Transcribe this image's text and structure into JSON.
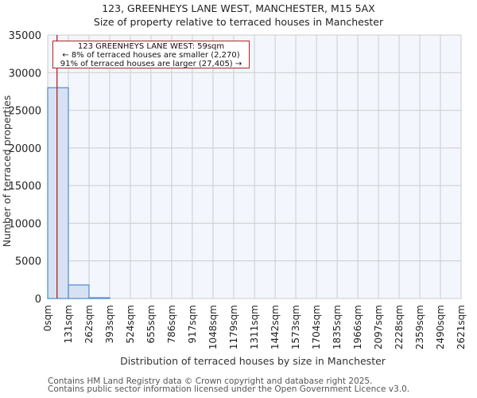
{
  "header": {
    "title_line1": "123, GREENHEYS LANE WEST, MANCHESTER, M15 5AX",
    "title_line2": "Size of property relative to terraced houses in Manchester"
  },
  "annotation": {
    "line1": "123 GREENHEYS LANE WEST: 59sqm",
    "line2": "← 8% of terraced houses are smaller (2,270)",
    "line3": "91% of terraced houses are larger (27,405) →",
    "marker_value_sqm": 59,
    "marker_color": "#b22222"
  },
  "footer": {
    "line1": "Contains HM Land Registry data © Crown copyright and database right 2025.",
    "line2": "Contains public sector information licensed under the Open Government Licence v3.0."
  },
  "colors": {
    "bar_fill": "#d6e2f3",
    "bar_edge": "#5b8fd6",
    "plot_bg": "#f3f6fd",
    "grid": "#cccccc",
    "marker": "#b22222"
  },
  "chart_data": {
    "type": "bar",
    "title": "123, GREENHEYS LANE WEST, MANCHESTER, M15 5AX",
    "subtitle": "Size of property relative to terraced houses in Manchester",
    "xlabel": "Distribution of terraced houses by size in Manchester",
    "ylabel": "Number of terraced properties",
    "categories": [
      "0sqm",
      "131sqm",
      "262sqm",
      "393sqm",
      "524sqm",
      "655sqm",
      "786sqm",
      "917sqm",
      "1048sqm",
      "1179sqm",
      "1311sqm",
      "1442sqm",
      "1573sqm",
      "1704sqm",
      "1835sqm",
      "1966sqm",
      "2097sqm",
      "2228sqm",
      "2359sqm",
      "2490sqm",
      "2621sqm"
    ],
    "bin_edges": [
      0,
      131,
      262,
      393,
      524,
      655,
      786,
      917,
      1048,
      1179,
      1311,
      1442,
      1573,
      1704,
      1835,
      1966,
      2097,
      2228,
      2359,
      2490,
      2621
    ],
    "values": [
      28000,
      1800,
      80,
      0,
      0,
      0,
      0,
      0,
      0,
      0,
      0,
      0,
      0,
      0,
      0,
      0,
      0,
      0,
      0,
      0
    ],
    "yticks": [
      0,
      5000,
      10000,
      15000,
      20000,
      25000,
      30000,
      35000
    ],
    "ylim": [
      0,
      35000
    ],
    "xlim": [
      0,
      2621
    ],
    "grid": true,
    "marker": {
      "x": 59,
      "label": "123 GREENHEYS LANE WEST: 59sqm"
    },
    "legend": null
  }
}
